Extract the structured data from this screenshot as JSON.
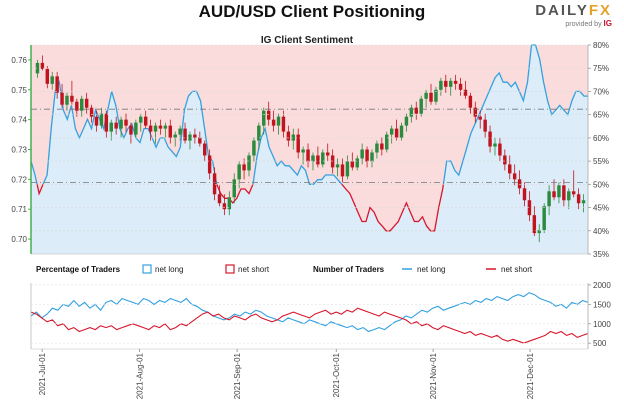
{
  "title": "AUD/USD Client Positioning",
  "brand": {
    "logo_left": "DAILY",
    "logo_right": "FX",
    "provided_by": "provided by",
    "provider": "IG"
  },
  "chart_data": [
    {
      "type": "candlestick",
      "title": "IG Client Sentiment",
      "y_left_ticks": [
        "0.76",
        "0.75",
        "0.74",
        "0.73",
        "0.72",
        "0.71",
        "0.70"
      ],
      "y_left_range": [
        0.695,
        0.765
      ],
      "y_right_ticks": [
        "80%",
        "75%",
        "70%",
        "65%",
        "60%",
        "55%",
        "50%",
        "45%",
        "40%",
        "35%"
      ],
      "y_right_range": [
        35,
        80
      ],
      "ref_price_lines": [
        0.7435,
        0.719
      ],
      "long_pct": [
        55,
        52,
        48,
        50,
        52,
        62,
        70,
        72,
        66,
        64,
        67,
        62,
        60,
        62,
        64,
        62,
        66,
        64,
        62,
        66,
        70,
        67,
        62,
        60,
        62,
        63,
        60,
        59,
        62,
        62,
        60,
        58,
        60,
        60,
        58,
        57,
        56,
        58,
        66,
        69,
        70,
        70,
        68,
        62,
        56,
        55,
        50,
        48,
        47,
        47,
        46,
        47,
        49,
        49,
        48,
        50,
        56,
        60,
        62,
        58,
        56,
        54,
        55,
        54,
        54,
        53,
        52,
        54,
        53,
        50,
        50,
        51,
        51,
        52,
        52,
        52,
        51,
        50,
        49,
        48,
        46,
        44,
        42,
        42,
        45,
        44,
        42,
        41,
        40,
        40,
        41,
        42,
        44,
        46,
        44,
        42,
        42,
        43,
        41,
        40,
        40,
        45,
        49,
        55,
        55,
        53,
        52,
        55,
        58,
        61,
        63,
        65,
        67,
        69,
        71,
        73,
        74,
        72,
        72,
        71,
        72,
        70,
        68,
        72,
        80,
        80,
        77,
        72,
        68,
        65,
        66,
        67,
        66,
        65,
        68,
        70,
        70,
        69,
        69
      ],
      "candles": [
        [
          0.7555,
          0.76,
          0.754,
          0.759
        ],
        [
          0.759,
          0.7615,
          0.7565,
          0.757
        ],
        [
          0.757,
          0.758,
          0.7505,
          0.752
        ],
        [
          0.752,
          0.756,
          0.75,
          0.7545
        ],
        [
          0.7545,
          0.756,
          0.747,
          0.749
        ],
        [
          0.749,
          0.752,
          0.744,
          0.745
        ],
        [
          0.745,
          0.749,
          0.743,
          0.748
        ],
        [
          0.748,
          0.753,
          0.745,
          0.746
        ],
        [
          0.746,
          0.747,
          0.741,
          0.743
        ],
        [
          0.743,
          0.748,
          0.741,
          0.747
        ],
        [
          0.747,
          0.749,
          0.742,
          0.744
        ],
        [
          0.744,
          0.745,
          0.739,
          0.741
        ],
        [
          0.741,
          0.743,
          0.736,
          0.738
        ],
        [
          0.738,
          0.744,
          0.737,
          0.742
        ],
        [
          0.742,
          0.743,
          0.734,
          0.736
        ],
        [
          0.736,
          0.74,
          0.733,
          0.739
        ],
        [
          0.739,
          0.741,
          0.735,
          0.737
        ],
        [
          0.737,
          0.741,
          0.734,
          0.74
        ],
        [
          0.74,
          0.742,
          0.736,
          0.738
        ],
        [
          0.738,
          0.739,
          0.732,
          0.735
        ],
        [
          0.735,
          0.74,
          0.734,
          0.739
        ],
        [
          0.739,
          0.742,
          0.736,
          0.741
        ],
        [
          0.741,
          0.743,
          0.737,
          0.738
        ],
        [
          0.738,
          0.74,
          0.733,
          0.736
        ],
        [
          0.736,
          0.739,
          0.732,
          0.738
        ],
        [
          0.738,
          0.74,
          0.735,
          0.737
        ],
        [
          0.737,
          0.739,
          0.734,
          0.738
        ],
        [
          0.738,
          0.74,
          0.732,
          0.734
        ],
        [
          0.734,
          0.736,
          0.731,
          0.735
        ],
        [
          0.735,
          0.738,
          0.733,
          0.737
        ],
        [
          0.737,
          0.739,
          0.732,
          0.733
        ],
        [
          0.733,
          0.736,
          0.73,
          0.735
        ],
        [
          0.735,
          0.737,
          0.732,
          0.734
        ],
        [
          0.734,
          0.736,
          0.731,
          0.732
        ],
        [
          0.732,
          0.733,
          0.726,
          0.728
        ],
        [
          0.728,
          0.73,
          0.72,
          0.722
        ],
        [
          0.722,
          0.724,
          0.713,
          0.715
        ],
        [
          0.715,
          0.718,
          0.711,
          0.712
        ],
        [
          0.712,
          0.715,
          0.708,
          0.71
        ],
        [
          0.71,
          0.716,
          0.708,
          0.714
        ],
        [
          0.714,
          0.722,
          0.712,
          0.72
        ],
        [
          0.72,
          0.726,
          0.717,
          0.725
        ],
        [
          0.725,
          0.727,
          0.72,
          0.723
        ],
        [
          0.723,
          0.729,
          0.721,
          0.728
        ],
        [
          0.728,
          0.734,
          0.726,
          0.733
        ],
        [
          0.733,
          0.739,
          0.73,
          0.738
        ],
        [
          0.738,
          0.744,
          0.735,
          0.743
        ],
        [
          0.743,
          0.746,
          0.738,
          0.74
        ],
        [
          0.74,
          0.743,
          0.736,
          0.738
        ],
        [
          0.738,
          0.742,
          0.735,
          0.741
        ],
        [
          0.741,
          0.743,
          0.734,
          0.736
        ],
        [
          0.736,
          0.738,
          0.731,
          0.733
        ],
        [
          0.733,
          0.737,
          0.73,
          0.735
        ],
        [
          0.735,
          0.737,
          0.727,
          0.729
        ],
        [
          0.729,
          0.731,
          0.725,
          0.73
        ],
        [
          0.73,
          0.732,
          0.724,
          0.726
        ],
        [
          0.726,
          0.729,
          0.723,
          0.728
        ],
        [
          0.728,
          0.731,
          0.724,
          0.725
        ],
        [
          0.725,
          0.73,
          0.724,
          0.729
        ],
        [
          0.729,
          0.732,
          0.726,
          0.728
        ],
        [
          0.728,
          0.73,
          0.722,
          0.724
        ],
        [
          0.724,
          0.727,
          0.721,
          0.725
        ],
        [
          0.725,
          0.727,
          0.719,
          0.721
        ],
        [
          0.721,
          0.728,
          0.72,
          0.726
        ],
        [
          0.726,
          0.729,
          0.723,
          0.724
        ],
        [
          0.724,
          0.728,
          0.723,
          0.727
        ],
        [
          0.727,
          0.732,
          0.725,
          0.73
        ],
        [
          0.73,
          0.731,
          0.724,
          0.726
        ],
        [
          0.726,
          0.73,
          0.724,
          0.729
        ],
        [
          0.729,
          0.733,
          0.727,
          0.732
        ],
        [
          0.732,
          0.734,
          0.728,
          0.73
        ],
        [
          0.73,
          0.736,
          0.729,
          0.735
        ],
        [
          0.735,
          0.738,
          0.732,
          0.737
        ],
        [
          0.737,
          0.74,
          0.733,
          0.734
        ],
        [
          0.734,
          0.739,
          0.733,
          0.738
        ],
        [
          0.738,
          0.742,
          0.736,
          0.741
        ],
        [
          0.741,
          0.745,
          0.739,
          0.744
        ],
        [
          0.744,
          0.746,
          0.74,
          0.742
        ],
        [
          0.742,
          0.748,
          0.741,
          0.747
        ],
        [
          0.747,
          0.75,
          0.744,
          0.749
        ],
        [
          0.749,
          0.752,
          0.745,
          0.746
        ],
        [
          0.746,
          0.751,
          0.745,
          0.75
        ],
        [
          0.75,
          0.754,
          0.748,
          0.753
        ],
        [
          0.753,
          0.755,
          0.749,
          0.751
        ],
        [
          0.751,
          0.754,
          0.748,
          0.753
        ],
        [
          0.753,
          0.755,
          0.75,
          0.752
        ],
        [
          0.752,
          0.754,
          0.748,
          0.75
        ],
        [
          0.75,
          0.753,
          0.747,
          0.748
        ],
        [
          0.748,
          0.749,
          0.742,
          0.744
        ],
        [
          0.744,
          0.746,
          0.739,
          0.741
        ],
        [
          0.741,
          0.743,
          0.737,
          0.74
        ],
        [
          0.74,
          0.742,
          0.734,
          0.736
        ],
        [
          0.736,
          0.738,
          0.729,
          0.731
        ],
        [
          0.731,
          0.734,
          0.728,
          0.732
        ],
        [
          0.732,
          0.734,
          0.726,
          0.728
        ],
        [
          0.728,
          0.73,
          0.723,
          0.725
        ],
        [
          0.725,
          0.728,
          0.72,
          0.722
        ],
        [
          0.722,
          0.725,
          0.718,
          0.72
        ],
        [
          0.72,
          0.723,
          0.715,
          0.717
        ],
        [
          0.717,
          0.719,
          0.711,
          0.713
        ],
        [
          0.713,
          0.716,
          0.706,
          0.708
        ],
        [
          0.708,
          0.711,
          0.701,
          0.702
        ],
        [
          0.702,
          0.705,
          0.699,
          0.703
        ],
        [
          0.703,
          0.712,
          0.702,
          0.711
        ],
        [
          0.711,
          0.718,
          0.708,
          0.716
        ],
        [
          0.716,
          0.72,
          0.713,
          0.714
        ],
        [
          0.714,
          0.719,
          0.712,
          0.718
        ],
        [
          0.718,
          0.72,
          0.711,
          0.713
        ],
        [
          0.713,
          0.717,
          0.71,
          0.716
        ],
        [
          0.716,
          0.723,
          0.714,
          0.715
        ],
        [
          0.715,
          0.717,
          0.71,
          0.712
        ],
        [
          0.712,
          0.715,
          0.709,
          0.713
        ]
      ]
    },
    {
      "type": "line",
      "legend": {
        "pct_title": "Percentage of Traders",
        "pct_long": "net long",
        "pct_short": "net short",
        "num_title": "Number of Traders",
        "num_long": "net long",
        "num_short": "net short"
      },
      "y_ticks": [
        "2000",
        "1500",
        "1000",
        "500"
      ],
      "y_range": [
        350,
        2050
      ],
      "x_labels": [
        "2021-Jul-01",
        "2021-Aug-01",
        "2021-Sep-01",
        "2021-Oct-01",
        "2021-Nov-01",
        "2021-Dec-01"
      ],
      "series": [
        {
          "name": "net long",
          "values": [
            1200,
            1300,
            1150,
            1250,
            1400,
            1350,
            1500,
            1450,
            1600,
            1450,
            1550,
            1400,
            1500,
            1350,
            1550,
            1600,
            1500,
            1650,
            1600,
            1550,
            1500,
            1650,
            1600,
            1500,
            1600,
            1550,
            1650,
            1600,
            1550,
            1650,
            1500,
            1450,
            1350,
            1300,
            1200,
            1150,
            1100,
            1150,
            1250,
            1200,
            1300,
            1250,
            1350,
            1300,
            1200,
            1150,
            1100,
            1050,
            1150,
            1100,
            1050,
            1000,
            1100,
            1050,
            1000,
            950,
            1050,
            1000,
            950,
            900,
            950,
            850,
            900,
            800,
            850,
            900,
            850,
            950,
            1050,
            1100,
            1200,
            1150,
            1250,
            1350,
            1300,
            1400,
            1450,
            1350,
            1400,
            1450,
            1500,
            1550,
            1500,
            1600,
            1550,
            1650,
            1600,
            1700,
            1650,
            1600,
            1700,
            1750,
            1700,
            1800,
            1750,
            1650,
            1600,
            1550,
            1450,
            1500,
            1400,
            1550,
            1500,
            1600,
            1550
          ],
          "color": "#33a1e0"
        },
        {
          "name": "net short",
          "values": [
            1300,
            1250,
            1150,
            1050,
            1100,
            950,
            1000,
            850,
            900,
            800,
            850,
            900,
            850,
            950,
            900,
            950,
            850,
            900,
            950,
            1000,
            950,
            900,
            850,
            950,
            900,
            1000,
            850,
            900,
            1000,
            950,
            1050,
            1150,
            1250,
            1300,
            1200,
            1250,
            1150,
            1100,
            1200,
            1150,
            1100,
            1200,
            1250,
            1150,
            1100,
            1050,
            1100,
            1200,
            1250,
            1300,
            1250,
            1200,
            1150,
            1250,
            1300,
            1350,
            1250,
            1300,
            1250,
            1350,
            1300,
            1400,
            1350,
            1300,
            1250,
            1200,
            1300,
            1250,
            1200,
            1150,
            1100,
            1000,
            1050,
            950,
            1000,
            900,
            850,
            950,
            900,
            850,
            800,
            750,
            800,
            700,
            750,
            700,
            650,
            700,
            600,
            550,
            600,
            550,
            500,
            550,
            600,
            650,
            700,
            800,
            750,
            800,
            700,
            750,
            650,
            700,
            750
          ],
          "color": "#d7172d"
        }
      ]
    }
  ],
  "colors": {
    "long": "#33a1e0",
    "short": "#d7172d",
    "long_fill": "#dcecf8",
    "short_fill": "#fbdcdc",
    "candle_up": "#2a8a3e",
    "candle_down": "#c0141f"
  }
}
